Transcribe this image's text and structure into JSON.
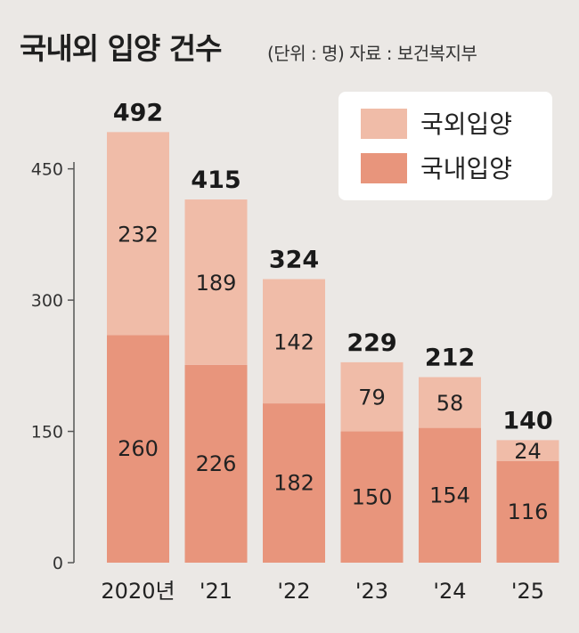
{
  "title": "국내외 입양 건수",
  "subtitle": "(단위 : 명) 자료 : 보건복지부",
  "colors": {
    "background": "#ebe8e5",
    "overseas": "#f0bca8",
    "domestic": "#e8957c",
    "axis": "#555555",
    "text": "#222222"
  },
  "chart_data": {
    "type": "bar",
    "stacked": true,
    "title": "국내외 입양 건수",
    "units": "명",
    "source": "보건복지부",
    "categories": [
      "2020년",
      "'21",
      "'22",
      "'23",
      "'24",
      "'25"
    ],
    "series": [
      {
        "name": "국내입양",
        "values": [
          260,
          226,
          182,
          150,
          154,
          116
        ]
      },
      {
        "name": "국외입양",
        "values": [
          232,
          189,
          142,
          79,
          58,
          24
        ]
      }
    ],
    "totals": [
      492,
      415,
      324,
      229,
      212,
      140
    ],
    "yticks": [
      0,
      150,
      300,
      450
    ],
    "ylim": [
      0,
      450
    ],
    "legend": {
      "position": "top-right",
      "items": [
        "국외입양",
        "국내입양"
      ]
    },
    "grid": false
  }
}
